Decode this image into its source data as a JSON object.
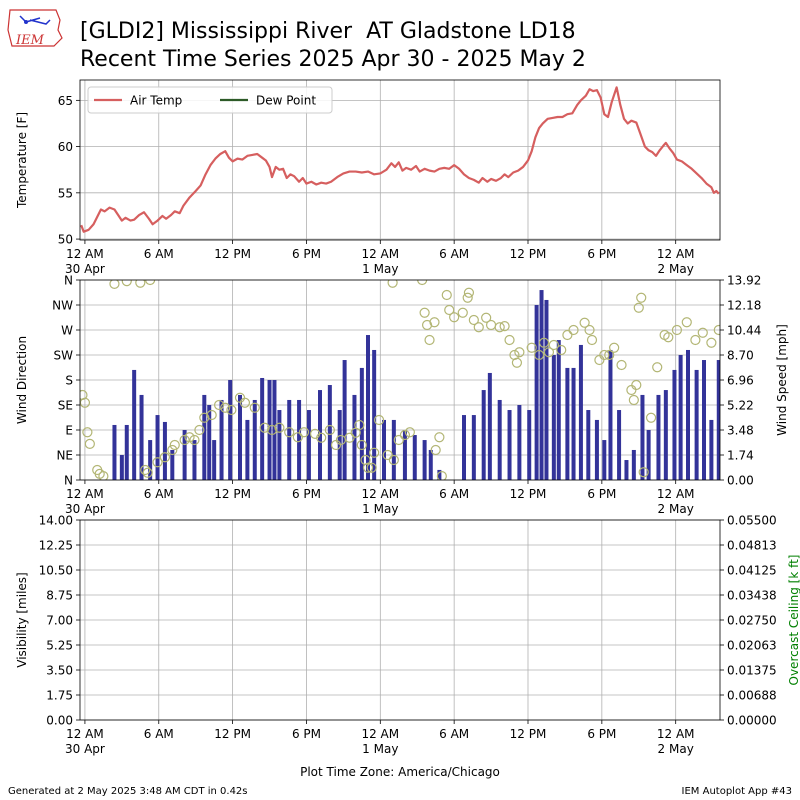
{
  "header": {
    "logo": "IEM",
    "title": [
      "[GLDI2] Mississippi River  AT Gladstone LD18",
      "Recent Time Series 2025 Apr 30 - 2025 May 2"
    ]
  },
  "footer": {
    "left": "Generated at 2 May 2025 3:48 AM CDT in 0.42s",
    "right": "IEM Autoplot App #43"
  },
  "chart_data": [
    {
      "type": "line",
      "ylabel": "Temperature [F]",
      "grid": true,
      "legend": "upper left",
      "xlim": [
        -0.4,
        51.6
      ],
      "xticks": [
        {
          "value": 0,
          "label": "12 AM"
        },
        {
          "value": 6,
          "label": "6 AM"
        },
        {
          "value": 12,
          "label": "12 PM"
        },
        {
          "value": 18,
          "label": "6 PM"
        },
        {
          "value": 24,
          "label": "12 AM"
        },
        {
          "value": 30,
          "label": "6 AM"
        },
        {
          "value": 36,
          "label": "12 PM"
        },
        {
          "value": 42,
          "label": "6 PM"
        },
        {
          "value": 48,
          "label": "12 AM"
        }
      ],
      "xtick_dates": [
        {
          "value": 0,
          "label": "30 Apr"
        },
        {
          "value": 24,
          "label": "1 May"
        },
        {
          "value": 48,
          "label": "2 May"
        }
      ],
      "ylim": [
        49.9,
        67.2
      ],
      "yticks": [
        50,
        55,
        60,
        65
      ],
      "series": [
        {
          "name": "Air Temp",
          "color": "#d65f5f",
          "x": [
            -0.3,
            -0.1,
            0.3,
            0.7,
            1.0,
            1.3,
            1.6,
            2.0,
            2.4,
            2.7,
            3.0,
            3.3,
            3.7,
            4.0,
            4.4,
            4.8,
            5.2,
            5.5,
            5.9,
            6.3,
            6.6,
            7.0,
            7.3,
            7.7,
            8.0,
            8.5,
            9.0,
            9.4,
            9.8,
            10.2,
            10.6,
            11.0,
            11.4,
            11.7,
            12.0,
            12.4,
            12.8,
            13.2,
            13.6,
            14.0,
            14.4,
            14.7,
            15.0,
            15.2,
            15.5,
            15.8,
            16.1,
            16.4,
            16.7,
            17.0,
            17.4,
            17.7,
            18.0,
            18.4,
            18.8,
            19.2,
            19.6,
            20.0,
            20.5,
            21.0,
            21.5,
            22.0,
            22.5,
            23.0,
            23.5,
            24.0,
            24.5,
            24.9,
            25.2,
            25.5,
            25.8,
            26.1,
            26.5,
            26.9,
            27.2,
            27.6,
            28.0,
            28.4,
            28.8,
            29.2,
            29.6,
            30.0,
            30.4,
            30.8,
            31.2,
            31.6,
            32.0,
            32.3,
            32.7,
            33.0,
            33.4,
            33.8,
            34.1,
            34.4,
            34.8,
            35.2,
            35.6,
            36.0,
            36.3,
            36.6,
            36.9,
            37.2,
            37.6,
            38.0,
            38.4,
            38.8,
            39.2,
            39.6,
            40.0,
            40.3,
            40.7,
            41.0,
            41.3,
            41.6,
            41.9,
            42.2,
            42.5,
            42.8,
            43.2,
            43.5,
            43.8,
            44.1,
            44.4,
            44.8,
            45.1,
            45.5,
            45.8,
            46.1,
            46.4,
            46.7,
            47.0,
            47.2,
            47.5,
            47.8,
            48.1,
            48.5,
            48.9,
            49.3,
            49.7,
            50.1,
            50.5,
            50.9,
            51.1,
            51.3,
            51.5
          ],
          "values": [
            51.5,
            50.8,
            51.0,
            51.6,
            52.4,
            53.2,
            53.0,
            53.4,
            53.2,
            52.6,
            52.0,
            52.3,
            52.0,
            52.1,
            52.6,
            52.9,
            52.2,
            51.6,
            52.0,
            52.5,
            52.2,
            52.6,
            53.0,
            52.8,
            53.6,
            54.5,
            55.2,
            55.8,
            57.0,
            58.0,
            58.7,
            59.2,
            59.5,
            58.8,
            58.4,
            58.7,
            58.6,
            59.0,
            59.1,
            59.2,
            58.8,
            58.5,
            57.8,
            56.7,
            57.8,
            57.5,
            57.6,
            56.6,
            57.0,
            56.8,
            56.2,
            56.6,
            56.0,
            56.2,
            55.9,
            56.1,
            56.0,
            56.2,
            56.7,
            57.1,
            57.3,
            57.3,
            57.2,
            57.3,
            57.0,
            57.1,
            57.5,
            58.2,
            57.8,
            58.3,
            57.4,
            57.7,
            57.5,
            57.9,
            57.3,
            57.6,
            57.4,
            57.3,
            57.6,
            57.7,
            57.6,
            58.0,
            57.6,
            57.0,
            56.6,
            56.4,
            56.1,
            56.6,
            56.2,
            56.5,
            56.3,
            56.6,
            57.0,
            56.7,
            57.2,
            57.4,
            57.8,
            58.5,
            59.5,
            61.0,
            62.0,
            62.5,
            63.0,
            63.1,
            63.2,
            63.2,
            63.5,
            63.6,
            64.5,
            65.0,
            65.5,
            66.2,
            66.0,
            66.1,
            65.3,
            63.5,
            63.2,
            64.8,
            66.4,
            64.5,
            63.0,
            62.5,
            62.8,
            62.6,
            61.5,
            60.0,
            59.6,
            59.4,
            59.0,
            59.6,
            60.1,
            60.4,
            59.8,
            59.3,
            58.6,
            58.4,
            58.0,
            57.6,
            57.1,
            56.6,
            56.0,
            55.6,
            55.0,
            55.2,
            54.9
          ]
        },
        {
          "name": "Dew Point",
          "color": "#2d5a27",
          "x": [],
          "values": []
        }
      ]
    },
    {
      "type": "bar_scatter",
      "ylabel": "Wind Direction",
      "y2label": "Wind Speed [mph]",
      "grid": true,
      "xlim": [
        -0.4,
        51.6
      ],
      "xticks": [
        {
          "value": 0,
          "label": "12 AM"
        },
        {
          "value": 6,
          "label": "6 AM"
        },
        {
          "value": 12,
          "label": "12 PM"
        },
        {
          "value": 18,
          "label": "6 PM"
        },
        {
          "value": 24,
          "label": "12 AM"
        },
        {
          "value": 30,
          "label": "6 AM"
        },
        {
          "value": 36,
          "label": "12 PM"
        },
        {
          "value": 42,
          "label": "6 PM"
        },
        {
          "value": 48,
          "label": "12 AM"
        }
      ],
      "xtick_dates": [
        {
          "value": 0,
          "label": "30 Apr"
        },
        {
          "value": 24,
          "label": "1 May"
        },
        {
          "value": 48,
          "label": "2 May"
        }
      ],
      "ylim": [
        0,
        360
      ],
      "yticks": [
        {
          "value": 0,
          "label": "N"
        },
        {
          "value": 45,
          "label": "NE"
        },
        {
          "value": 90,
          "label": "E"
        },
        {
          "value": 135,
          "label": "SE"
        },
        {
          "value": 180,
          "label": "S"
        },
        {
          "value": 225,
          "label": "SW"
        },
        {
          "value": 270,
          "label": "W"
        },
        {
          "value": 315,
          "label": "NW"
        },
        {
          "value": 360,
          "label": "N"
        }
      ],
      "y2lim": [
        0,
        13.92
      ],
      "y2ticks": [
        {
          "value": 0,
          "label": "0.00"
        },
        1.74,
        3.48,
        5.22,
        6.96,
        {
          "value": 8.7,
          "label": "8.70"
        },
        10.44,
        12.18,
        13.92
      ],
      "series": [
        {
          "kind": "bar",
          "axis": "y2",
          "color": "#333399",
          "x": [
            2.4,
            3.0,
            3.4,
            4.0,
            4.6,
            5.3,
            5.9,
            6.5,
            7.1,
            8.1,
            8.9,
            9.7,
            10.1,
            10.5,
            11.1,
            11.8,
            12.6,
            13.2,
            13.8,
            14.4,
            15.0,
            15.4,
            15.8,
            16.6,
            17.4,
            18.2,
            19.1,
            19.9,
            20.7,
            21.1,
            21.9,
            22.5,
            23.0,
            23.5,
            24.3,
            25.1,
            26.0,
            26.8,
            27.6,
            28.1,
            28.8,
            30.8,
            31.6,
            32.4,
            32.9,
            33.7,
            34.5,
            35.3,
            36.1,
            36.7,
            37.1,
            37.5,
            38.1,
            38.5,
            39.2,
            39.7,
            40.3,
            40.9,
            41.6,
            42.2,
            42.7,
            43.4,
            44.0,
            44.6,
            45.3,
            45.8,
            46.6,
            47.2,
            47.9,
            48.4,
            49.0,
            49.7,
            50.3,
            50.9,
            51.5
          ],
          "values": [
            3.83,
            1.74,
            3.83,
            7.66,
            5.92,
            2.78,
            4.52,
            4.04,
            2.09,
            3.48,
            2.78,
            5.92,
            5.22,
            2.78,
            5.57,
            6.96,
            5.92,
            4.18,
            5.57,
            7.1,
            6.96,
            6.96,
            4.87,
            5.57,
            5.57,
            4.87,
            6.26,
            6.61,
            4.87,
            8.35,
            5.92,
            7.8,
            10.09,
            9.05,
            4.18,
            4.18,
            3.48,
            3.13,
            2.78,
            2.09,
            0.7,
            4.52,
            4.52,
            6.26,
            7.45,
            5.57,
            4.87,
            5.22,
            4.87,
            12.18,
            13.22,
            12.53,
            8.7,
            9.74,
            7.8,
            7.8,
            9.4,
            4.87,
            4.18,
            2.78,
            9.05,
            4.87,
            1.39,
            2.09,
            5.92,
            3.48,
            5.92,
            6.26,
            7.66,
            8.7,
            9.05,
            7.66,
            8.35,
            4.18,
            8.35
          ]
        },
        {
          "kind": "scatter",
          "color": "#b3b675",
          "x": [
            -0.2,
            0.0,
            0.2,
            0.4,
            1.0,
            1.2,
            1.5,
            2.4,
            3.4,
            4.5,
            5.3,
            4.9,
            5.1,
            5.9,
            6.5,
            7.1,
            7.3,
            8.1,
            8.5,
            8.9,
            9.3,
            9.7,
            10.3,
            10.9,
            11.4,
            11.9,
            12.6,
            13.0,
            13.8,
            14.6,
            15.2,
            15.8,
            16.6,
            17.3,
            17.8,
            18.7,
            19.2,
            19.9,
            20.4,
            20.8,
            21.5,
            22.0,
            22.3,
            22.5,
            22.8,
            23.0,
            23.3,
            23.5,
            23.9,
            24.6,
            25.1,
            25.5,
            26.0,
            26.4,
            25.0,
            27.4,
            27.6,
            27.8,
            28.0,
            28.4,
            28.8,
            28.5,
            29.0,
            29.4,
            29.6,
            30.0,
            30.7,
            31.1,
            31.2,
            31.6,
            32.0,
            32.6,
            33.0,
            33.7,
            34.1,
            34.5,
            34.9,
            35.1,
            35.3,
            36.3,
            36.9,
            37.3,
            37.7,
            38.1,
            38.7,
            39.2,
            39.7,
            40.6,
            41.0,
            41.2,
            41.8,
            42.2,
            42.6,
            43.0,
            43.6,
            44.4,
            44.6,
            44.8,
            45.0,
            45.2,
            45.4,
            46.0,
            46.5,
            47.1,
            47.4,
            48.1,
            48.9,
            49.6,
            50.2,
            50.9,
            51.5
          ],
          "values": [
            153,
            139,
            86,
            65,
            18,
            11,
            7,
            353,
            358,
            355,
            360,
            18,
            13,
            32,
            41,
            54,
            63,
            72,
            77,
            72,
            90,
            112,
            117,
            135,
            130,
            126,
            148,
            139,
            130,
            94,
            90,
            94,
            86,
            77,
            86,
            83,
            76,
            90,
            63,
            72,
            76,
            85,
            99,
            63,
            36,
            22,
            22,
            49,
            108,
            45,
            36,
            72,
            81,
            86,
            355,
            360,
            301,
            279,
            252,
            284,
            77,
            54,
            7,
            333,
            306,
            293,
            301,
            328,
            337,
            288,
            275,
            292,
            279,
            275,
            277,
            252,
            225,
            211,
            230,
            238,
            225,
            247,
            230,
            243,
            234,
            261,
            270,
            283,
            270,
            252,
            216,
            225,
            225,
            238,
            207,
            162,
            144,
            171,
            310,
            328,
            14,
            112,
            203,
            261,
            257,
            270,
            284,
            252,
            265,
            247,
            270
          ]
        }
      ]
    },
    {
      "type": "line",
      "ylabel": "Visibility [miles]",
      "y2label": "Overcast Ceiling [k ft]",
      "y2label_color": "#008000",
      "xlabel": "Plot Time Zone: America/Chicago",
      "grid": true,
      "xlim": [
        -0.4,
        51.6
      ],
      "xticks": [
        {
          "value": 0,
          "label": "12 AM"
        },
        {
          "value": 6,
          "label": "6 AM"
        },
        {
          "value": 12,
          "label": "12 PM"
        },
        {
          "value": 18,
          "label": "6 PM"
        },
        {
          "value": 24,
          "label": "12 AM"
        },
        {
          "value": 30,
          "label": "6 AM"
        },
        {
          "value": 36,
          "label": "12 PM"
        },
        {
          "value": 42,
          "label": "6 PM"
        },
        {
          "value": 48,
          "label": "12 AM"
        }
      ],
      "xtick_dates": [
        {
          "value": 0,
          "label": "30 Apr"
        },
        {
          "value": 24,
          "label": "1 May"
        },
        {
          "value": 48,
          "label": "2 May"
        }
      ],
      "ylim": [
        0,
        14
      ],
      "yticks": [
        {
          "value": 0,
          "label": "0.00"
        },
        1.75,
        {
          "value": 3.5,
          "label": "3.50"
        },
        5.25,
        {
          "value": 7,
          "label": "7.00"
        },
        8.75,
        {
          "value": 10.5,
          "label": "10.50"
        },
        12.25,
        {
          "value": 14,
          "label": "14.00"
        }
      ],
      "y2lim": [
        0,
        0.055
      ],
      "y2ticks": [
        {
          "value": 0,
          "label": "0.00000"
        },
        {
          "value": 0.006875,
          "label": "0.00688"
        },
        {
          "value": 0.01375,
          "label": "0.01375"
        },
        {
          "value": 0.020625,
          "label": "0.02063"
        },
        {
          "value": 0.0275,
          "label": "0.02750"
        },
        {
          "value": 0.034375,
          "label": "0.03438"
        },
        {
          "value": 0.04125,
          "label": "0.04125"
        },
        {
          "value": 0.048125,
          "label": "0.04813"
        },
        {
          "value": 0.055,
          "label": "0.05500"
        }
      ],
      "series": []
    }
  ]
}
